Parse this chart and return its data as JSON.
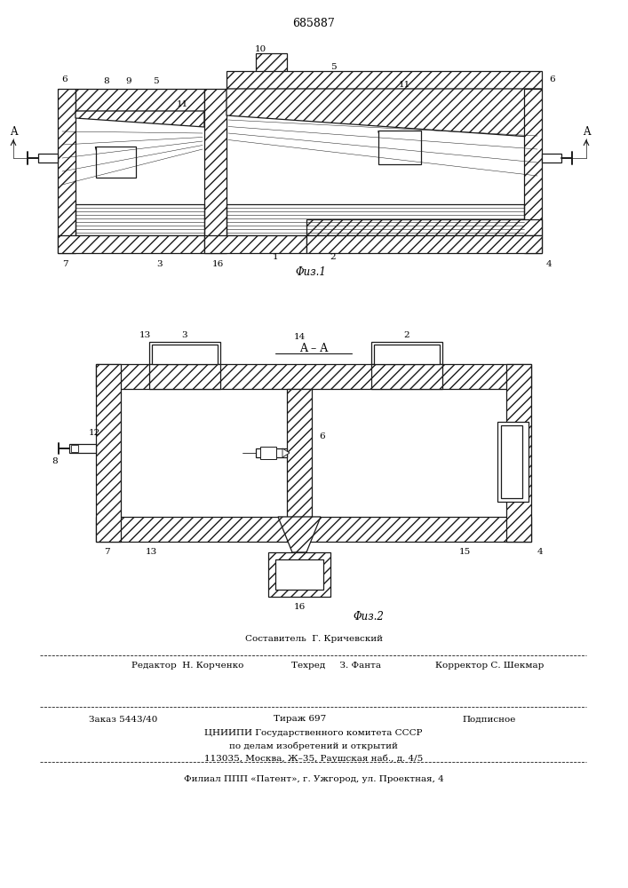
{
  "patent_number": "685887",
  "fig1_caption": "Φиз.1",
  "fig2_caption": "Φиз.2",
  "composer_line": "Составитель  Г. Кричевский",
  "editor_text": "Редактор  Н. Корченко",
  "techred_text": "Техред     З. Фанта",
  "corrector_text": "Корректор С. Шекмар",
  "order_text": "Заказ 5443/40",
  "tirazh_text": "Тираж 697",
  "podpisnoe_text": "Подписное",
  "cniipmi_text": "ЦНИИПИ Государственного комитета СССР",
  "po_delam_text": "по делам изобретений и открытий",
  "address_text": "113035, Москва, Ж–35, Раушская наб., д. 4/5",
  "filial_text": "Филиал ППП «Патент», г. Ужгород, ул. Проектная, 4",
  "bg_color": "#ffffff"
}
